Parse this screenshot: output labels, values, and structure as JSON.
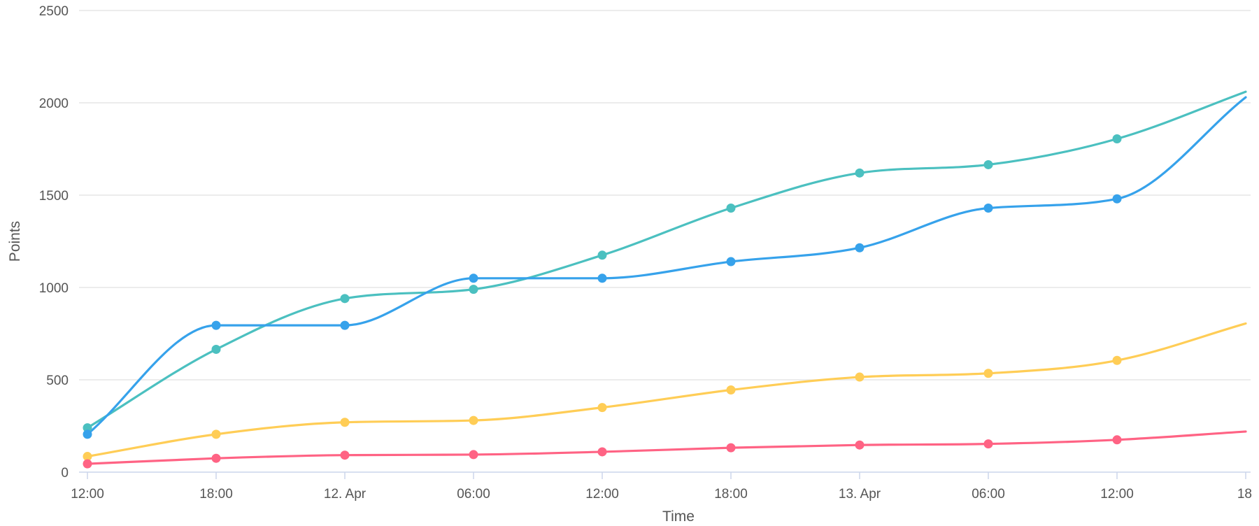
{
  "chart_data": {
    "type": "line",
    "xlabel": "Time",
    "ylabel": "Points",
    "ylim": [
      0,
      2500
    ],
    "yticks": [
      0,
      500,
      1000,
      1500,
      2000,
      2500
    ],
    "x_axis_type": "datetime",
    "x_tick_labels": [
      "12:00",
      "18:00",
      "12. Apr",
      "06:00",
      "12:00",
      "18:00",
      "13. Apr",
      "06:00",
      "12:00",
      "18"
    ],
    "x": [
      "11 Apr 12:00",
      "11 Apr 18:00",
      "12 Apr 00:00",
      "12 Apr 06:00",
      "12 Apr 12:00",
      "12 Apr 18:00",
      "13 Apr 00:00",
      "13 Apr 06:00",
      "13 Apr 12:00",
      "13 Apr 18:00"
    ],
    "grid": true,
    "legend": "none",
    "colors": [
      "#4bc0c0",
      "#36a2eb",
      "#ffcd56",
      "#ff6384"
    ],
    "series": [
      {
        "values": [
          240,
          665,
          940,
          990,
          1175,
          1430,
          1620,
          1665,
          1805,
          2060
        ]
      },
      {
        "values": [
          205,
          795,
          795,
          1050,
          1050,
          1140,
          1215,
          1430,
          1480,
          2030
        ]
      },
      {
        "values": [
          85,
          205,
          270,
          280,
          350,
          445,
          515,
          535,
          605,
          805
        ]
      },
      {
        "values": [
          45,
          75,
          92,
          95,
          110,
          132,
          147,
          153,
          175,
          220
        ]
      }
    ]
  }
}
